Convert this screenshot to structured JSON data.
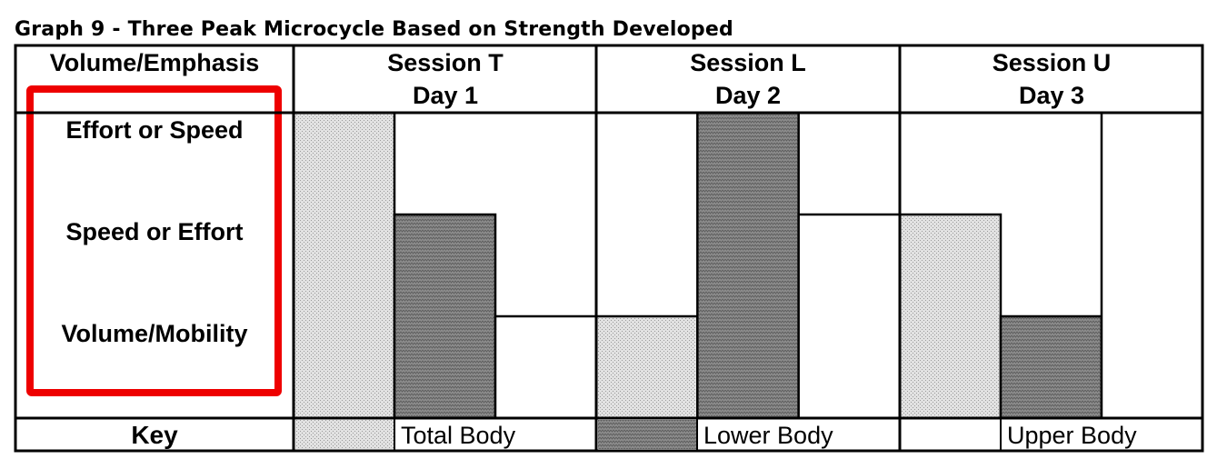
{
  "title": "Graph 9 - Three Peak Microcycle Based on Strength Developed",
  "columns": {
    "label_header": "Volume/Emphasis",
    "sessions": [
      {
        "name": "Session T",
        "day": "Day 1"
      },
      {
        "name": "Session L",
        "day": "Day 2"
      },
      {
        "name": "Session U",
        "day": "Day 3"
      }
    ]
  },
  "levels": [
    "Effort or Speed",
    "Speed or Effort",
    "Volume/Mobility"
  ],
  "highlight_color": "#ee0000",
  "key": {
    "label": "Key",
    "items": [
      {
        "label": "Total Body",
        "pattern": "light-dotted",
        "color": "#d4d4d4"
      },
      {
        "label": "Lower Body",
        "pattern": "dark-wavy",
        "color": "#8a8a8a"
      },
      {
        "label": "Upper Body",
        "pattern": "none",
        "color": "#ffffff"
      }
    ]
  },
  "chart_data": {
    "type": "bar",
    "title": "Graph 9 - Three Peak Microcycle Based on Strength Developed",
    "ylabel": "Volume/Emphasis",
    "y_levels": [
      "Volume/Mobility",
      "Speed or Effort",
      "Effort or Speed"
    ],
    "ylim": [
      0,
      3
    ],
    "categories": [
      "Session T Day 1",
      "Session L Day 2",
      "Session U Day 3"
    ],
    "series": [
      {
        "name": "Total Body",
        "values": [
          3,
          1,
          2
        ]
      },
      {
        "name": "Lower Body",
        "values": [
          2,
          3,
          1
        ]
      },
      {
        "name": "Upper Body",
        "values": [
          1,
          2,
          3
        ]
      }
    ]
  }
}
